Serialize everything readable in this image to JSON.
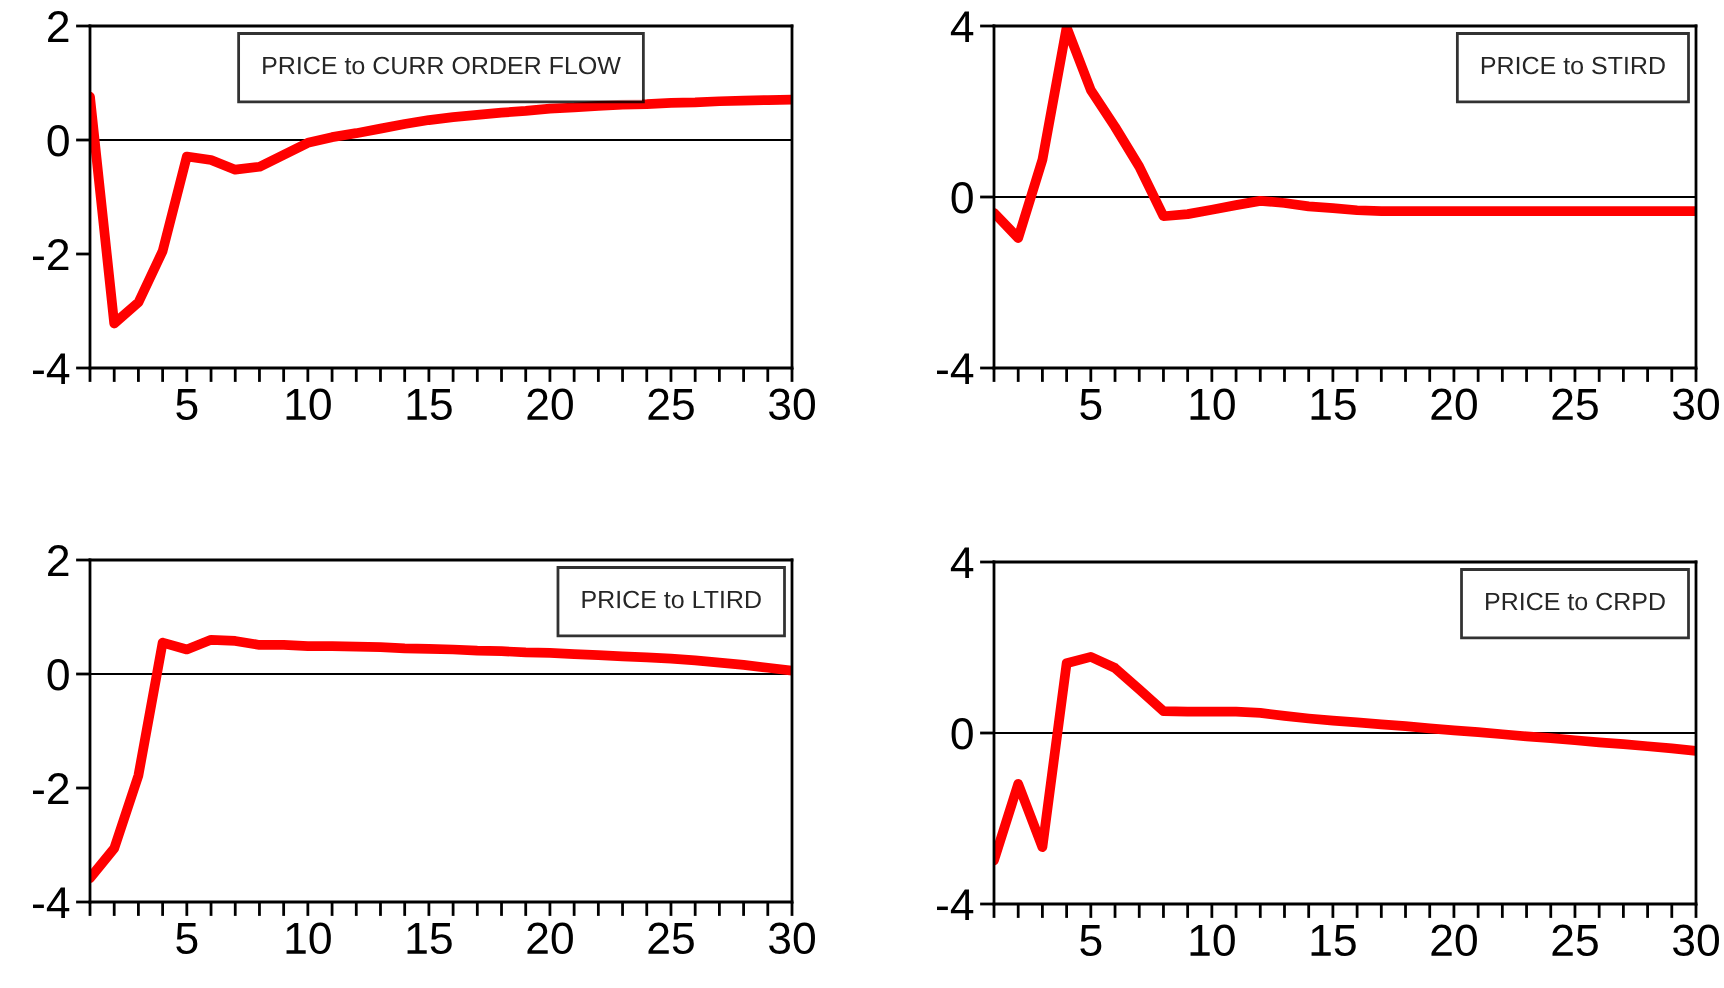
{
  "chart_data": [
    {
      "type": "line",
      "x": [
        1,
        2,
        3,
        4,
        5,
        6,
        7,
        8,
        9,
        10,
        11,
        12,
        13,
        14,
        15,
        16,
        17,
        18,
        19,
        20,
        21,
        22,
        23,
        24,
        25,
        26,
        27,
        28,
        29,
        30
      ],
      "xlim": [
        1,
        30
      ],
      "xticks": [
        {
          "value": 1,
          "label": null
        },
        {
          "value": 2,
          "label": null
        },
        {
          "value": 3,
          "label": null
        },
        {
          "value": 4,
          "label": null
        },
        5,
        {
          "value": 6,
          "label": null
        },
        {
          "value": 7,
          "label": null
        },
        {
          "value": 8,
          "label": null
        },
        {
          "value": 9,
          "label": null
        },
        10,
        {
          "value": 11,
          "label": null
        },
        {
          "value": 12,
          "label": null
        },
        {
          "value": 13,
          "label": null
        },
        {
          "value": 14,
          "label": null
        },
        15,
        {
          "value": 16,
          "label": null
        },
        {
          "value": 17,
          "label": null
        },
        {
          "value": 18,
          "label": null
        },
        {
          "value": 19,
          "label": null
        },
        20,
        {
          "value": 21,
          "label": null
        },
        {
          "value": 22,
          "label": null
        },
        {
          "value": 23,
          "label": null
        },
        {
          "value": 24,
          "label": null
        },
        25,
        {
          "value": 26,
          "label": null
        },
        {
          "value": 27,
          "label": null
        },
        {
          "value": 28,
          "label": null
        },
        {
          "value": 29,
          "label": null
        },
        30
      ],
      "ylim": [
        -4,
        2
      ],
      "yticks": [
        -4,
        -2,
        0,
        2
      ],
      "grid": false,
      "legend": "top",
      "marker": "none",
      "line_style": "solid",
      "ref_lines": [
        {
          "axis": "y",
          "value": 0,
          "color": "#000000"
        }
      ],
      "series": [
        {
          "name": "PRICE to CURR ORDER FLOW",
          "color": "#ff0000",
          "values": [
            0.76,
            -3.22,
            -2.85,
            -1.95,
            -0.29,
            -0.35,
            -0.52,
            -0.47,
            -0.26,
            -0.05,
            0.05,
            0.12,
            0.2,
            0.28,
            0.35,
            0.4,
            0.44,
            0.48,
            0.51,
            0.55,
            0.57,
            0.6,
            0.62,
            0.63,
            0.65,
            0.66,
            0.68,
            0.69,
            0.7,
            0.71
          ]
        }
      ]
    },
    {
      "type": "line",
      "x": [
        1,
        2,
        3,
        4,
        5,
        6,
        7,
        8,
        9,
        10,
        11,
        12,
        13,
        14,
        15,
        16,
        17,
        18,
        19,
        20,
        21,
        22,
        23,
        24,
        25,
        26,
        27,
        28,
        29,
        30
      ],
      "xlim": [
        1,
        30
      ],
      "xticks": [
        {
          "value": 1,
          "label": null
        },
        {
          "value": 2,
          "label": null
        },
        {
          "value": 3,
          "label": null
        },
        {
          "value": 4,
          "label": null
        },
        5,
        {
          "value": 6,
          "label": null
        },
        {
          "value": 7,
          "label": null
        },
        {
          "value": 8,
          "label": null
        },
        {
          "value": 9,
          "label": null
        },
        10,
        {
          "value": 11,
          "label": null
        },
        {
          "value": 12,
          "label": null
        },
        {
          "value": 13,
          "label": null
        },
        {
          "value": 14,
          "label": null
        },
        15,
        {
          "value": 16,
          "label": null
        },
        {
          "value": 17,
          "label": null
        },
        {
          "value": 18,
          "label": null
        },
        {
          "value": 19,
          "label": null
        },
        20,
        {
          "value": 21,
          "label": null
        },
        {
          "value": 22,
          "label": null
        },
        {
          "value": 23,
          "label": null
        },
        {
          "value": 24,
          "label": null
        },
        25,
        {
          "value": 26,
          "label": null
        },
        {
          "value": 27,
          "label": null
        },
        {
          "value": 28,
          "label": null
        },
        {
          "value": 29,
          "label": null
        },
        30
      ],
      "ylim": [
        -4,
        4
      ],
      "yticks": [
        -4,
        0,
        4
      ],
      "grid": false,
      "legend": "top right",
      "marker": "none",
      "line_style": "solid",
      "ref_lines": [
        {
          "axis": "y",
          "value": 0,
          "color": "#000000"
        }
      ],
      "series": [
        {
          "name": "PRICE to STIRD",
          "color": "#ff0000",
          "values": [
            -0.37,
            -0.96,
            0.87,
            3.97,
            2.5,
            1.64,
            0.71,
            -0.45,
            -0.4,
            -0.3,
            -0.19,
            -0.09,
            -0.14,
            -0.22,
            -0.26,
            -0.31,
            -0.33,
            -0.33,
            -0.33,
            -0.33,
            -0.33,
            -0.33,
            -0.33,
            -0.33,
            -0.33,
            -0.33,
            -0.33,
            -0.33,
            -0.33,
            -0.33
          ]
        }
      ]
    },
    {
      "type": "line",
      "x": [
        1,
        2,
        3,
        4,
        5,
        6,
        7,
        8,
        9,
        10,
        11,
        12,
        13,
        14,
        15,
        16,
        17,
        18,
        19,
        20,
        21,
        22,
        23,
        24,
        25,
        26,
        27,
        28,
        29,
        30
      ],
      "xlim": [
        1,
        30
      ],
      "xticks": [
        {
          "value": 1,
          "label": null
        },
        {
          "value": 2,
          "label": null
        },
        {
          "value": 3,
          "label": null
        },
        {
          "value": 4,
          "label": null
        },
        5,
        {
          "value": 6,
          "label": null
        },
        {
          "value": 7,
          "label": null
        },
        {
          "value": 8,
          "label": null
        },
        {
          "value": 9,
          "label": null
        },
        10,
        {
          "value": 11,
          "label": null
        },
        {
          "value": 12,
          "label": null
        },
        {
          "value": 13,
          "label": null
        },
        {
          "value": 14,
          "label": null
        },
        15,
        {
          "value": 16,
          "label": null
        },
        {
          "value": 17,
          "label": null
        },
        {
          "value": 18,
          "label": null
        },
        {
          "value": 19,
          "label": null
        },
        20,
        {
          "value": 21,
          "label": null
        },
        {
          "value": 22,
          "label": null
        },
        {
          "value": 23,
          "label": null
        },
        {
          "value": 24,
          "label": null
        },
        25,
        {
          "value": 26,
          "label": null
        },
        {
          "value": 27,
          "label": null
        },
        {
          "value": 28,
          "label": null
        },
        {
          "value": 29,
          "label": null
        },
        30
      ],
      "ylim": [
        -4,
        2
      ],
      "yticks": [
        -4,
        -2,
        0,
        2
      ],
      "grid": false,
      "legend": "top right",
      "marker": "none",
      "line_style": "solid",
      "ref_lines": [
        {
          "axis": "y",
          "value": 0,
          "color": "#000000"
        }
      ],
      "series": [
        {
          "name": "PRICE to LTIRD",
          "color": "#ff0000",
          "values": [
            -3.58,
            -3.06,
            -1.78,
            0.55,
            0.43,
            0.6,
            0.58,
            0.51,
            0.51,
            0.49,
            0.49,
            0.48,
            0.47,
            0.45,
            0.44,
            0.43,
            0.41,
            0.4,
            0.38,
            0.37,
            0.35,
            0.33,
            0.31,
            0.29,
            0.27,
            0.24,
            0.2,
            0.16,
            0.11,
            0.06
          ]
        }
      ]
    },
    {
      "type": "line",
      "x": [
        1,
        2,
        3,
        4,
        5,
        6,
        7,
        8,
        9,
        10,
        11,
        12,
        13,
        14,
        15,
        16,
        17,
        18,
        19,
        20,
        21,
        22,
        23,
        24,
        25,
        26,
        27,
        28,
        29,
        30
      ],
      "xlim": [
        1,
        30
      ],
      "xticks": [
        {
          "value": 1,
          "label": null
        },
        {
          "value": 2,
          "label": null
        },
        {
          "value": 3,
          "label": null
        },
        {
          "value": 4,
          "label": null
        },
        5,
        {
          "value": 6,
          "label": null
        },
        {
          "value": 7,
          "label": null
        },
        {
          "value": 8,
          "label": null
        },
        {
          "value": 9,
          "label": null
        },
        10,
        {
          "value": 11,
          "label": null
        },
        {
          "value": 12,
          "label": null
        },
        {
          "value": 13,
          "label": null
        },
        {
          "value": 14,
          "label": null
        },
        15,
        {
          "value": 16,
          "label": null
        },
        {
          "value": 17,
          "label": null
        },
        {
          "value": 18,
          "label": null
        },
        {
          "value": 19,
          "label": null
        },
        20,
        {
          "value": 21,
          "label": null
        },
        {
          "value": 22,
          "label": null
        },
        {
          "value": 23,
          "label": null
        },
        {
          "value": 24,
          "label": null
        },
        25,
        {
          "value": 26,
          "label": null
        },
        {
          "value": 27,
          "label": null
        },
        {
          "value": 28,
          "label": null
        },
        {
          "value": 29,
          "label": null
        },
        30
      ],
      "ylim": [
        -4,
        4
      ],
      "yticks": [
        -4,
        0,
        4
      ],
      "grid": false,
      "legend": "top right",
      "marker": "none",
      "line_style": "solid",
      "ref_lines": [
        {
          "axis": "y",
          "value": 0,
          "color": "#000000"
        }
      ],
      "series": [
        {
          "name": "PRICE to CRPD",
          "color": "#ff0000",
          "values": [
            -2.98,
            -1.19,
            -2.67,
            1.63,
            1.78,
            1.52,
            1.02,
            0.51,
            0.5,
            0.5,
            0.5,
            0.47,
            0.4,
            0.34,
            0.29,
            0.25,
            0.2,
            0.16,
            0.11,
            0.06,
            0.02,
            -0.03,
            -0.08,
            -0.12,
            -0.17,
            -0.22,
            -0.26,
            -0.31,
            -0.36,
            -0.42
          ]
        }
      ]
    }
  ]
}
